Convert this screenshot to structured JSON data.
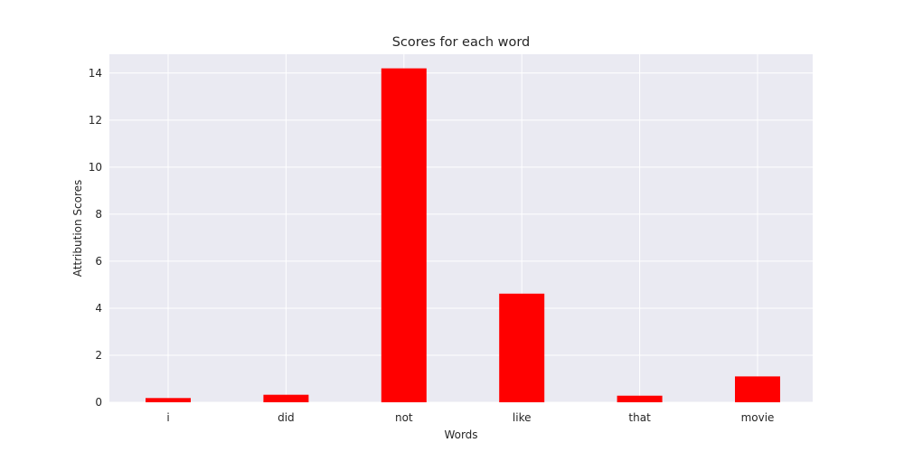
{
  "chart_data": {
    "type": "bar",
    "title": "Scores for each word",
    "xlabel": "Words",
    "ylabel": "Attribution Scores",
    "categories": [
      "i",
      "did",
      "not",
      "like",
      "that",
      "movie"
    ],
    "values": [
      0.18,
      0.32,
      14.2,
      4.62,
      0.28,
      1.1
    ],
    "ylim": [
      0,
      14.8
    ],
    "yticks": [
      0,
      2,
      4,
      6,
      8,
      10,
      12,
      14
    ],
    "grid": true,
    "colors": {
      "bar": "#ff0000",
      "plot_bg": "#eaeaf2",
      "grid": "#ffffff"
    }
  }
}
